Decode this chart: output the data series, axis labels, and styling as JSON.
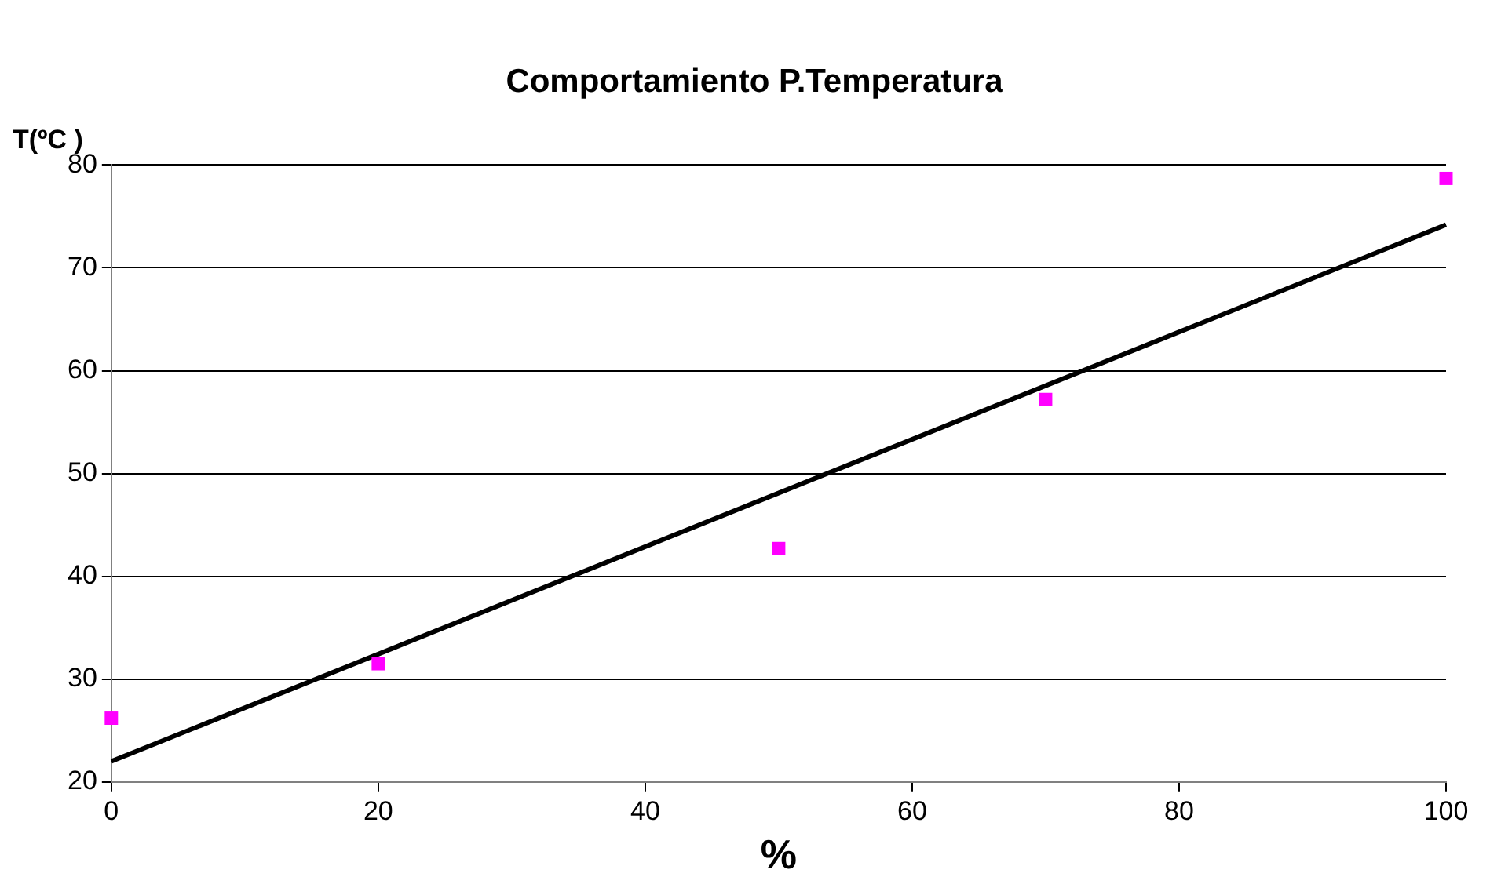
{
  "chart_data": {
    "type": "scatter",
    "title": "Comportamiento P.Temperatura",
    "xlabel": "%",
    "ylabel": "T(ºC )",
    "xlim": [
      0,
      100
    ],
    "xticks": [
      0,
      20,
      40,
      60,
      80,
      100
    ],
    "ylim": [
      20,
      80
    ],
    "yticks": [
      20,
      30,
      40,
      50,
      60,
      70,
      80
    ],
    "grid": "y",
    "marker": "square",
    "series": [
      {
        "color": "#ff00ff",
        "x": [
          0,
          20,
          50,
          70,
          100
        ],
        "values": [
          26.2,
          31.5,
          42.7,
          57.2,
          78.7
        ]
      },
      {
        "type": "line",
        "color": "#000000",
        "x": [
          0,
          100
        ],
        "values": [
          22.0,
          74.2
        ],
        "marker": "none",
        "line_style": "solid"
      }
    ]
  }
}
